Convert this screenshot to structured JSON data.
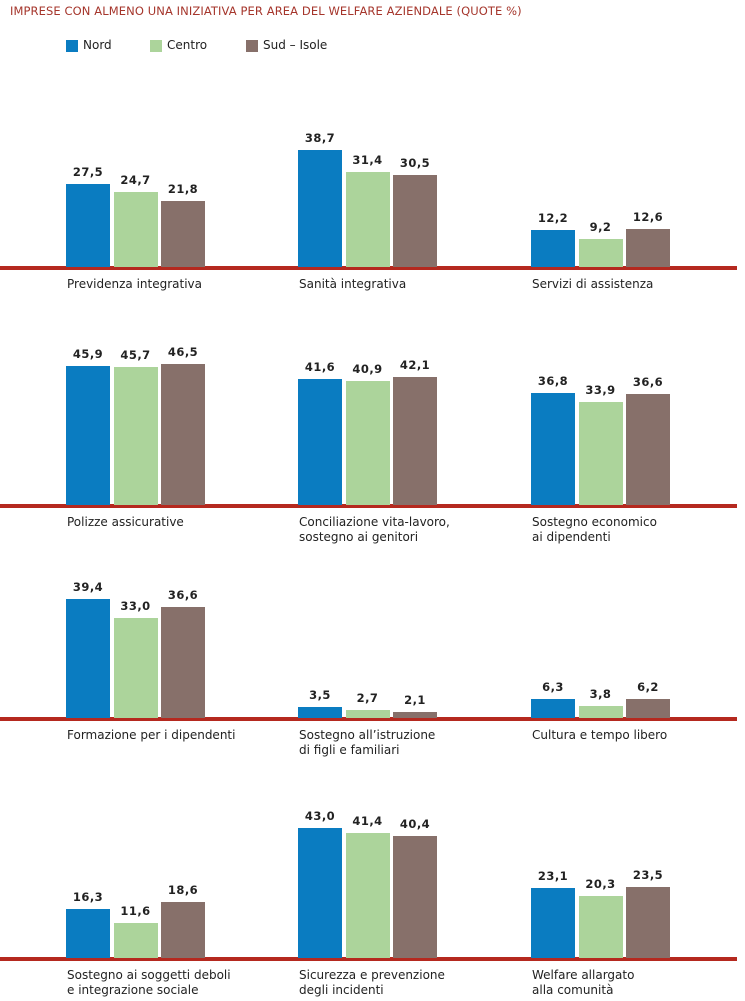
{
  "chart_data": {
    "type": "bar",
    "title": "IMPRESE CON ALMENO UNA INIZIATIVA PER AREA DEL WELFARE AZIENDALE (QUOTE %)",
    "categories": [
      "Previdenza integrativa",
      "Sanità integrativa",
      "Servizi di assistenza",
      "Polizze assicurative",
      "Conciliazione vita-lavoro,\nsostegno ai genitori",
      "Sostegno economico\nai dipendenti",
      "Formazione per i dipendenti",
      "Sostegno all’istruzione\ndi figli e familiari",
      "Cultura e tempo libero",
      "Sostegno ai soggetti deboli\ne integrazione sociale",
      "Sicurezza e prevenzione\ndegli incidenti",
      "Welfare allargato\nalla comunità"
    ],
    "series": [
      {
        "name": "Nord",
        "color": "#0a7cc1",
        "values": [
          27.5,
          38.7,
          12.2,
          45.9,
          41.6,
          36.8,
          39.4,
          3.5,
          6.3,
          16.3,
          43.0,
          23.1
        ],
        "value_labels": [
          "27,5",
          "38,7",
          "12,2",
          "45,9",
          "41,6",
          "36,8",
          "39,4",
          "3,5",
          "6,3",
          "16,3",
          "43,0",
          "23,1"
        ]
      },
      {
        "name": "Centro",
        "color": "#acd49b",
        "values": [
          24.7,
          31.4,
          9.2,
          45.7,
          40.9,
          33.9,
          33.0,
          2.7,
          3.8,
          11.6,
          41.4,
          20.3
        ],
        "value_labels": [
          "24,7",
          "31,4",
          "9,2",
          "45,7",
          "40,9",
          "33,9",
          "33,0",
          "2,7",
          "3,8",
          "11,6",
          "41,4",
          "20,3"
        ]
      },
      {
        "name": "Sud – Isole",
        "color": "#87706a",
        "values": [
          21.8,
          30.5,
          12.6,
          46.5,
          42.1,
          36.6,
          36.6,
          2.1,
          6.2,
          18.6,
          40.4,
          23.5
        ],
        "value_labels": [
          "21,8",
          "30,5",
          "12,6",
          "46,5",
          "42,1",
          "36,6",
          "36,6",
          "2,1",
          "6,2",
          "18,6",
          "40,4",
          "23,5"
        ]
      }
    ]
  }
}
